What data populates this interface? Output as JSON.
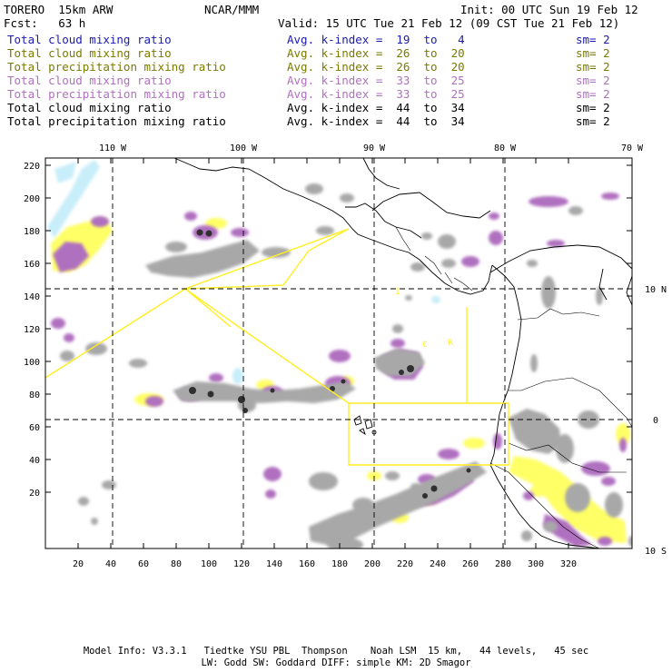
{
  "header": {
    "model": "TORERO  15km ARW",
    "center": "NCAR/MMM",
    "init": "Init: 00 UTC Sun 19 Feb 12",
    "fcst": "Fcst:   63 h",
    "valid": "Valid: 15 UTC Tue 21 Feb 12 (09 CST Tue 21 Feb 12)"
  },
  "legend": [
    {
      "field": "Total cloud mixing ratio",
      "kindex": "Avg. k-index =  19  to   4",
      "sm": "sm= 2",
      "color": "#1a1ab0"
    },
    {
      "field": "Total cloud mixing ratio",
      "kindex": "Avg. k-index =  26  to  20",
      "sm": "sm= 2",
      "color": "#7a7a00"
    },
    {
      "field": "Total precipitation mixing ratio",
      "kindex": "Avg. k-index =  26  to  20",
      "sm": "sm= 2",
      "color": "#7a7a00"
    },
    {
      "field": "Total cloud mixing ratio",
      "kindex": "Avg. k-index =  33  to  25",
      "sm": "sm= 2",
      "color": "#b070c0"
    },
    {
      "field": "Total precipitation mixing ratio",
      "kindex": "Avg. k-index =  33  to  25",
      "sm": "sm= 2",
      "color": "#b070c0"
    },
    {
      "field": "Total cloud mixing ratio",
      "kindex": "Avg. k-index =  44  to  34",
      "sm": "sm= 2",
      "color": "#000000"
    },
    {
      "field": "Total precipitation mixing ratio",
      "kindex": "Avg. k-index =  44  to  34",
      "sm": "sm= 2",
      "color": "#000000"
    }
  ],
  "map": {
    "lon_labels": [
      "110 W",
      "100 W",
      "90 W",
      "80 W",
      "70 W"
    ],
    "lat_labels": [
      "10 N",
      "0",
      "10 S"
    ],
    "x_ticks": [
      "20",
      "40",
      "60",
      "80",
      "100",
      "120",
      "140",
      "160",
      "180",
      "200",
      "220",
      "240",
      "260",
      "280",
      "300",
      "320"
    ],
    "y_ticks": [
      "220",
      "200",
      "180",
      "160",
      "140",
      "120",
      "100",
      "80",
      "60",
      "40",
      "20"
    ],
    "region_labels": [
      "I",
      "C",
      "R"
    ],
    "colors": {
      "light_blue": "#c8eefa",
      "yellow": "#ffff66",
      "purple": "#b070c0",
      "gray": "#a8a8a8",
      "dark": "#303030",
      "flight_track": "#ffee22"
    }
  },
  "footer": {
    "line1": "Model Info: V3.3.1   Tiedtke YSU PBL  Thompson    Noah LSM  15 km,   44 levels,   45 sec",
    "line2": "LW: Godd SW: Goddard DIFF: simple KM: 2D Smagor"
  }
}
